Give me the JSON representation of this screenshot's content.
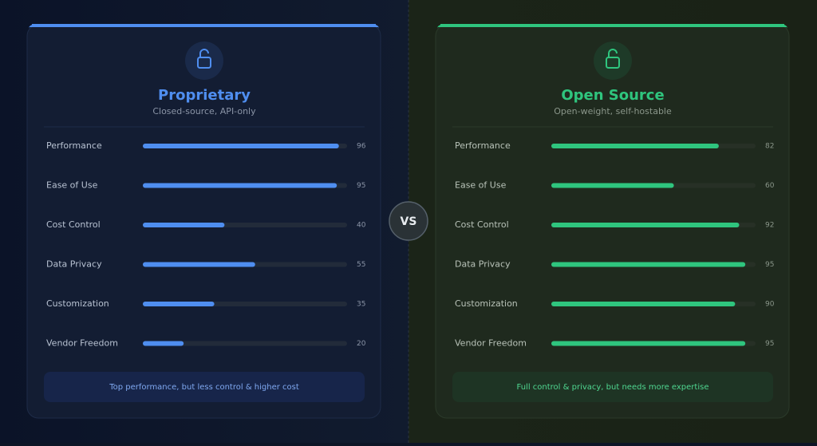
{
  "vs_label": "VS",
  "chart_data": [
    {
      "type": "hbar",
      "title": "Proprietary",
      "subtitle": "Closed-source, API-only",
      "categories": [
        "Performance",
        "Ease of Use",
        "Cost Control",
        "Data Privacy",
        "Customization",
        "Vendor Freedom"
      ],
      "values": [
        96,
        95,
        40,
        55,
        35,
        20
      ],
      "xlim": [
        0,
        100
      ],
      "color": "#4f8ef0",
      "note": "Top performance, but less control & higher cost"
    },
    {
      "type": "hbar",
      "title": "Open Source",
      "subtitle": "Open-weight, self-hostable",
      "categories": [
        "Performance",
        "Ease of Use",
        "Cost Control",
        "Data Privacy",
        "Customization",
        "Vendor Freedom"
      ],
      "values": [
        82,
        60,
        92,
        95,
        90,
        95
      ],
      "xlim": [
        0,
        100
      ],
      "color": "#2fc57e",
      "note": "Full control & privacy, but needs more expertise"
    }
  ]
}
